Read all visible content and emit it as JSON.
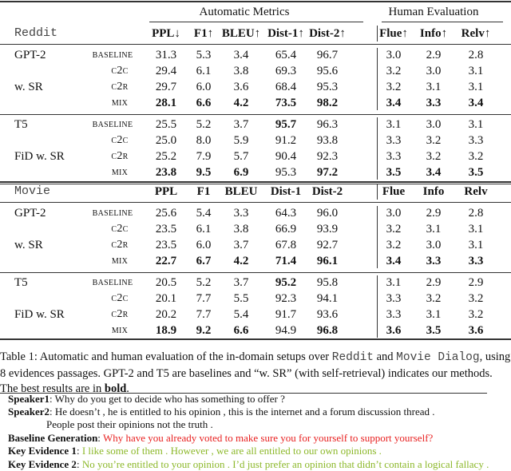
{
  "header": {
    "group_auto": "Automatic Metrics",
    "group_human": "Human Evaluation"
  },
  "sections": [
    {
      "dataset": "Reddit",
      "columns": [
        "PPL↓",
        "F1↑",
        "BLEU↑",
        "Dist-1↑",
        "Dist-2↑",
        "Flue↑",
        "Info↑",
        "Relv↑"
      ],
      "groups": [
        {
          "labels": [
            "GPT-2",
            "w. SR"
          ],
          "rows": [
            {
              "variant": "baseline",
              "values": [
                "31.3",
                "5.3",
                "3.4",
                "65.4",
                "96.7",
                "3.0",
                "2.9",
                "2.8"
              ],
              "bold": []
            },
            {
              "variant": "c2c",
              "values": [
                "29.4",
                "6.1",
                "3.8",
                "69.3",
                "95.6",
                "3.2",
                "3.0",
                "3.1"
              ],
              "bold": []
            },
            {
              "variant": "c2r",
              "values": [
                "29.7",
                "6.0",
                "3.6",
                "68.4",
                "95.3",
                "3.2",
                "3.1",
                "3.1"
              ],
              "bold": []
            },
            {
              "variant": "mix",
              "values": [
                "28.1",
                "6.6",
                "4.2",
                "73.5",
                "98.2",
                "3.4",
                "3.3",
                "3.4"
              ],
              "bold": [
                0,
                1,
                2,
                3,
                4,
                5,
                6,
                7
              ]
            }
          ]
        },
        {
          "labels": [
            "T5",
            "FiD w. SR"
          ],
          "rows": [
            {
              "variant": "baseline",
              "values": [
                "25.5",
                "5.2",
                "3.7",
                "95.7",
                "96.3",
                "3.1",
                "3.0",
                "3.1"
              ],
              "bold": [
                3
              ]
            },
            {
              "variant": "c2c",
              "values": [
                "25.0",
                "8.0",
                "5.9",
                "91.2",
                "93.8",
                "3.3",
                "3.2",
                "3.3"
              ],
              "bold": []
            },
            {
              "variant": "c2r",
              "values": [
                "25.2",
                "7.9",
                "5.7",
                "90.4",
                "92.3",
                "3.3",
                "3.2",
                "3.2"
              ],
              "bold": []
            },
            {
              "variant": "mix",
              "values": [
                "23.8",
                "9.5",
                "6.9",
                "95.3",
                "97.2",
                "3.5",
                "3.4",
                "3.5"
              ],
              "bold": [
                0,
                1,
                2,
                4,
                5,
                6,
                7
              ]
            }
          ]
        }
      ]
    },
    {
      "dataset": "Movie",
      "columns": [
        "PPL",
        "F1",
        "BLEU",
        "Dist-1",
        "Dist-2",
        "Flue",
        "Info",
        "Relv"
      ],
      "groups": [
        {
          "labels": [
            "GPT-2",
            "w. SR"
          ],
          "rows": [
            {
              "variant": "baseline",
              "values": [
                "25.6",
                "5.4",
                "3.3",
                "64.3",
                "96.0",
                "3.0",
                "2.9",
                "2.8"
              ],
              "bold": []
            },
            {
              "variant": "c2c",
              "values": [
                "23.5",
                "6.1",
                "3.8",
                "66.9",
                "93.9",
                "3.2",
                "3.1",
                "3.1"
              ],
              "bold": []
            },
            {
              "variant": "c2r",
              "values": [
                "23.5",
                "6.0",
                "3.7",
                "67.8",
                "92.7",
                "3.2",
                "3.0",
                "3.1"
              ],
              "bold": []
            },
            {
              "variant": "mix",
              "values": [
                "22.7",
                "6.7",
                "4.2",
                "71.4",
                "96.1",
                "3.4",
                "3.3",
                "3.3"
              ],
              "bold": [
                0,
                1,
                2,
                3,
                4,
                5,
                6,
                7
              ]
            }
          ]
        },
        {
          "labels": [
            "T5",
            "FiD w. SR"
          ],
          "rows": [
            {
              "variant": "baseline",
              "values": [
                "20.5",
                "5.2",
                "3.7",
                "95.2",
                "95.8",
                "3.1",
                "2.9",
                "2.9"
              ],
              "bold": [
                3
              ]
            },
            {
              "variant": "c2c",
              "values": [
                "20.1",
                "7.7",
                "5.5",
                "92.3",
                "94.1",
                "3.3",
                "3.2",
                "3.2"
              ],
              "bold": []
            },
            {
              "variant": "c2r",
              "values": [
                "20.2",
                "7.7",
                "5.4",
                "91.7",
                "93.6",
                "3.3",
                "3.1",
                "3.2"
              ],
              "bold": []
            },
            {
              "variant": "mix",
              "values": [
                "18.9",
                "9.2",
                "6.6",
                "94.9",
                "96.8",
                "3.6",
                "3.5",
                "3.6"
              ],
              "bold": [
                0,
                1,
                2,
                4,
                5,
                6,
                7
              ]
            }
          ]
        }
      ]
    }
  ],
  "caption": {
    "prefix": "Table 1: Automatic and human evaluation of the in-domain setups over ",
    "ds1": "Reddit",
    "and": " and ",
    "ds2": "Movie Dialog",
    "rest": ", using 8 evidences passages. GPT-2 and T5 are baselines and “w. SR” (with self-retrieval) indicates our methods. The best results are in ",
    "bold": "bold",
    "end": "."
  },
  "example": {
    "speaker1_label": "Speaker1",
    "speaker1_text": ": Why do you get to decide who has something to offer ?",
    "speaker2_label": "Speaker2",
    "speaker2_text": ": He doesn’t , he is entitled to his opinion , this is the internet and a forum discussion thread .",
    "speaker2_cont": "People post their opinions not the truth .",
    "baseline_label": "Baseline Generation",
    "baseline_text": "Why have you already voted to make sure you for yourself to support yourself?",
    "ke1_label": "Key Evidence 1",
    "ke1_text": "I like some of them . However , we are all entitled to our own opinions .",
    "ke2_label": "Key Evidence 2",
    "ke2_text": "No you’re entitled to your opinion . I’d just prefer an opinion that didn’t contain a logical fallacy ."
  },
  "colors": {
    "baseline_text": "#e82020",
    "evidence_text": "#8cb82a"
  }
}
